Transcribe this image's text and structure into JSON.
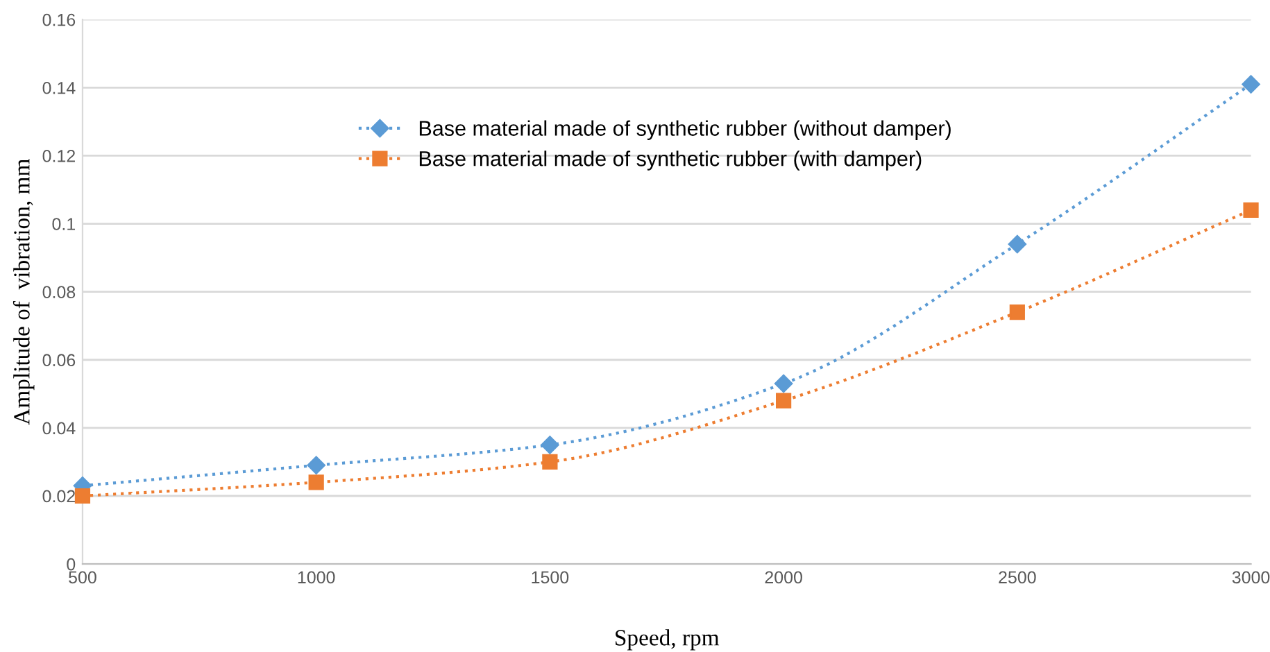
{
  "chart_data": {
    "type": "line",
    "xlabel": "Speed, rpm",
    "ylabel": "Amplitude of  vibration, mm",
    "x": [
      500,
      1000,
      1500,
      2000,
      2500,
      3000
    ],
    "series": [
      {
        "name": "Base material made of synthetic rubber (without damper)",
        "color": "#5b9bd5",
        "marker": "diamond",
        "values": [
          0.023,
          0.029,
          0.035,
          0.053,
          0.094,
          0.141
        ]
      },
      {
        "name": "Base material made of synthetic rubber (with damper)",
        "color": "#ed7d31",
        "marker": "square",
        "values": [
          0.02,
          0.024,
          0.03,
          0.048,
          0.074,
          0.104
        ]
      }
    ],
    "xlim": [
      500,
      3000
    ],
    "xticks": [
      500,
      1000,
      1500,
      2000,
      2500,
      3000
    ],
    "ylim": [
      0,
      0.16
    ],
    "yticks": [
      0,
      0.02,
      0.04,
      0.06,
      0.08,
      0.1,
      0.12,
      0.14,
      0.16
    ],
    "grid": "y",
    "legend": "top",
    "line_style": "dotted"
  }
}
